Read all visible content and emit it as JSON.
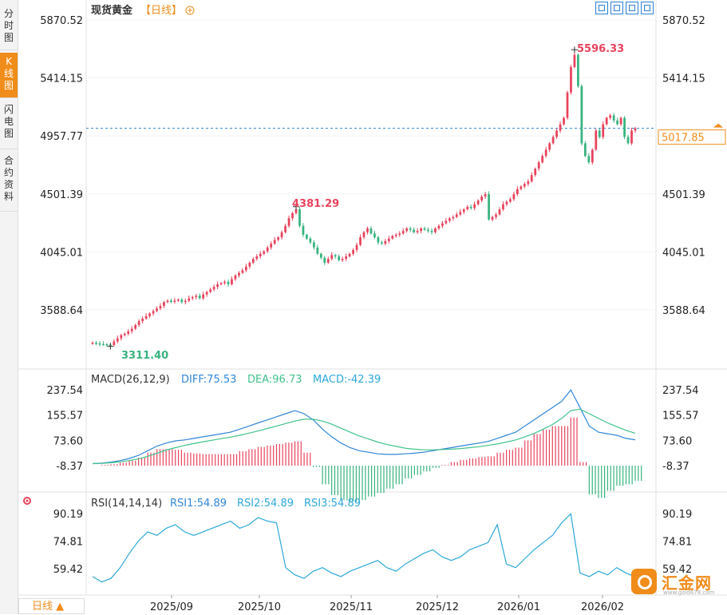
{
  "sidebar": {
    "tabs": [
      {
        "label": "分时图",
        "active": false
      },
      {
        "label": "K线图",
        "active": true
      },
      {
        "label": "闪电图",
        "active": false
      },
      {
        "label": "合约资料",
        "active": false
      }
    ]
  },
  "header": {
    "symbol": "现货黄金",
    "period": "【日线】",
    "add_icon": "circle-plus-icon"
  },
  "toolbar": {
    "icons": [
      "zoom-in-icon",
      "zoom-out-icon",
      "step-back-icon",
      "step-forward-icon"
    ]
  },
  "price_panel": {
    "y_ticks": [
      "5870.52",
      "5414.15",
      "4957.77",
      "4501.39",
      "4045.01",
      "3588.64"
    ],
    "current_price": "5017.85",
    "high_label": "5596.33",
    "high_mid_label": "4381.29",
    "low_label": "3311.40"
  },
  "macd_panel": {
    "title": "MACD(26,12,9)",
    "diff_label": "DIFF:75.53",
    "dea_label": "DEA:96.73",
    "macd_label": "MACD:-42.39",
    "y_ticks": [
      "237.54",
      "155.57",
      "73.60",
      "-8.37"
    ]
  },
  "rsi_panel": {
    "title": "RSI(14,14,14)",
    "rsi1_label": "RSI1:54.89",
    "rsi2_label": "RSI2:54.89",
    "rsi3_label": "RSI3:54.89",
    "y_ticks": [
      "90.19",
      "74.81",
      "59.42"
    ]
  },
  "x_axis": {
    "labels": [
      "2025/09",
      "2025/10",
      "2025/11",
      "2025/12",
      "2026/01",
      "2026/02"
    ]
  },
  "period_button": {
    "label": "日线 ▲"
  },
  "logo": {
    "text": "汇金网",
    "url": "www.gold678.com"
  },
  "colors": {
    "up": "#e8435c",
    "down": "#37b37e",
    "diff": "#2f86d8",
    "dea": "#41c28a",
    "accent": "#f08c1a",
    "rsi": "#2ca8d8"
  },
  "chart_data": [
    {
      "type": "candlestick",
      "title": "现货黄金 日线",
      "x_start": "2025-07-28",
      "x_end": "2026-02-20",
      "ylim": [
        3450,
        5900
      ],
      "close": [
        3330,
        3325,
        3320,
        3318,
        3315,
        3311.4,
        3340,
        3365,
        3390,
        3400,
        3420,
        3440,
        3470,
        3500,
        3520,
        3540,
        3560,
        3580,
        3600,
        3620,
        3650,
        3660,
        3655,
        3662,
        3670,
        3650,
        3660,
        3680,
        3690,
        3700,
        3680,
        3710,
        3730,
        3750,
        3770,
        3790,
        3800,
        3810,
        3790,
        3830,
        3860,
        3880,
        3900,
        3930,
        3960,
        3990,
        4010,
        4030,
        4050,
        4080,
        4110,
        4140,
        4160,
        4200,
        4250,
        4310,
        4350,
        4381.29,
        4250,
        4180,
        4150,
        4120,
        4080,
        4030,
        4000,
        3960,
        3990,
        4020,
        4010,
        3980,
        3990,
        4010,
        4030,
        4060,
        4100,
        4160,
        4200,
        4230,
        4190,
        4160,
        4120,
        4110,
        4130,
        4150,
        4170,
        4180,
        4190,
        4210,
        4230,
        4220,
        4200,
        4210,
        4230,
        4220,
        4210,
        4200,
        4230,
        4250,
        4270,
        4290,
        4310,
        4320,
        4340,
        4360,
        4380,
        4400,
        4390,
        4420,
        4450,
        4480,
        4500,
        4300,
        4320,
        4340,
        4380,
        4420,
        4440,
        4460,
        4500,
        4540,
        4560,
        4580,
        4600,
        4650,
        4700,
        4750,
        4800,
        4850,
        4900,
        4950,
        5000,
        5050,
        5100,
        5300,
        5500,
        5596.33,
        5350,
        4900,
        4800,
        4750,
        4850,
        5000,
        4950,
        5050,
        5100,
        5120,
        5080,
        5050,
        5100,
        4950,
        4900,
        5000,
        5017.85
      ]
    },
    {
      "type": "line",
      "title": "MACD(26,12,9)",
      "ylim": [
        -8.37,
        237.54
      ],
      "series": [
        {
          "name": "DIFF",
          "values": [
            -2,
            0,
            3,
            8,
            15,
            25,
            40,
            55,
            65,
            72,
            75,
            80,
            85,
            90,
            95,
            100,
            110,
            120,
            130,
            140,
            150,
            160,
            170,
            160,
            140,
            110,
            85,
            65,
            50,
            40,
            35,
            30,
            28,
            28,
            30,
            32,
            35,
            40,
            45,
            50,
            55,
            60,
            65,
            70,
            80,
            90,
            100,
            120,
            140,
            160,
            180,
            200,
            237,
            180,
            120,
            100,
            95,
            90,
            80,
            75.53
          ]
        },
        {
          "name": "DEA",
          "values": [
            -2,
            -1,
            1,
            4,
            8,
            14,
            22,
            32,
            42,
            50,
            57,
            63,
            69,
            74,
            79,
            84,
            90,
            97,
            104,
            112,
            120,
            128,
            136,
            142,
            142,
            136,
            126,
            113,
            100,
            88,
            78,
            68,
            60,
            54,
            48,
            45,
            43,
            43,
            44,
            45,
            47,
            50,
            53,
            57,
            62,
            68,
            75,
            85,
            96,
            110,
            125,
            145,
            170,
            175,
            160,
            145,
            130,
            118,
            106,
            96.73
          ]
        }
      ]
    },
    {
      "type": "line",
      "title": "RSI(14,14,14)",
      "ylim": [
        50,
        95
      ],
      "series": [
        {
          "name": "RSI1",
          "values": [
            55,
            52,
            54,
            60,
            68,
            75,
            80,
            78,
            82,
            84,
            80,
            78,
            80,
            82,
            84,
            86,
            82,
            84,
            88,
            86,
            85,
            60,
            56,
            54,
            58,
            60,
            57,
            55,
            58,
            60,
            62,
            64,
            60,
            58,
            62,
            65,
            68,
            70,
            66,
            64,
            66,
            70,
            72,
            74,
            84,
            62,
            60,
            65,
            70,
            74,
            78,
            85,
            90,
            57,
            55,
            58,
            56,
            60,
            57,
            54.89
          ]
        }
      ]
    }
  ]
}
